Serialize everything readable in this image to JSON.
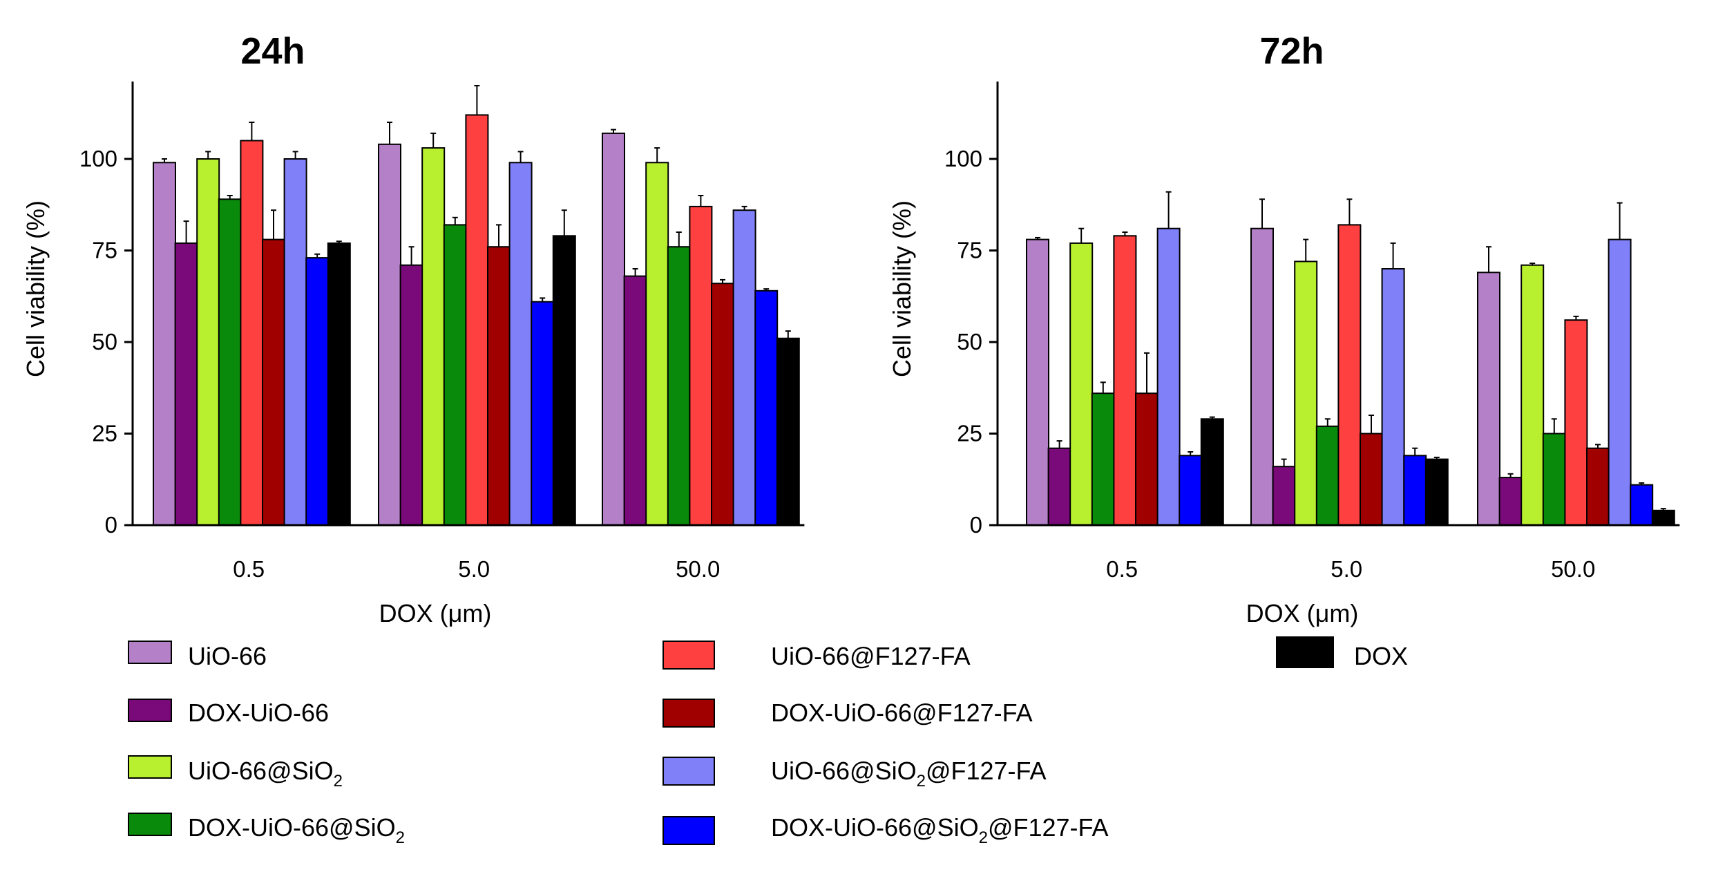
{
  "chart_data": [
    {
      "type": "bar",
      "title": "24h",
      "xlabel": "DOX (μm)",
      "ylabel": "Cell viability  (%)",
      "ylim": [
        0,
        120
      ],
      "yticks": [
        "0",
        "25",
        "50",
        "75",
        "100"
      ],
      "categories": [
        "0.5",
        "5.0",
        "50.0"
      ],
      "series": [
        {
          "name": "UiO-66",
          "color": "#b480c8",
          "values": [
            99,
            104,
            107
          ],
          "errors": [
            1,
            6,
            1
          ]
        },
        {
          "name": "DOX-UiO-66",
          "color": "#7a0a7a",
          "values": [
            77,
            71,
            68
          ],
          "errors": [
            6,
            5,
            2
          ]
        },
        {
          "name": "UiO-66@SiO2",
          "color": "#b8f030",
          "values": [
            100,
            103,
            99
          ],
          "errors": [
            2,
            4,
            4
          ]
        },
        {
          "name": "DOX-UiO-66@SiO2",
          "color": "#0a8a0a",
          "values": [
            89,
            82,
            76
          ],
          "errors": [
            1,
            2,
            4
          ]
        },
        {
          "name": "UiO-66@F127-FA",
          "color": "#ff4040",
          "values": [
            105,
            112,
            87
          ],
          "errors": [
            5,
            8,
            3
          ]
        },
        {
          "name": "DOX-UiO-66@F127-FA",
          "color": "#a00000",
          "values": [
            78,
            76,
            66
          ],
          "errors": [
            8,
            6,
            1
          ]
        },
        {
          "name": "UiO-66@SiO2@F127-FA",
          "color": "#8080f8",
          "values": [
            100,
            99,
            86
          ],
          "errors": [
            2,
            3,
            1
          ]
        },
        {
          "name": "DOX-UiO-66@SiO2@F127-FA",
          "color": "#0000ff",
          "values": [
            73,
            61,
            64
          ],
          "errors": [
            1,
            1,
            0.5
          ]
        },
        {
          "name": "DOX",
          "color": "#000000",
          "values": [
            77,
            79,
            51
          ],
          "errors": [
            0.5,
            7,
            2
          ]
        }
      ]
    },
    {
      "type": "bar",
      "title": "72h",
      "xlabel": "DOX (μm)",
      "ylabel": "Cell viability  (%)",
      "ylim": [
        0,
        120
      ],
      "yticks": [
        "0",
        "25",
        "50",
        "75",
        "100"
      ],
      "categories": [
        "0.5",
        "5.0",
        "50.0"
      ],
      "series": [
        {
          "name": "UiO-66",
          "color": "#b480c8",
          "values": [
            78,
            81,
            69
          ],
          "errors": [
            0.5,
            8,
            7
          ]
        },
        {
          "name": "DOX-UiO-66",
          "color": "#7a0a7a",
          "values": [
            21,
            16,
            13
          ],
          "errors": [
            2,
            2,
            1
          ]
        },
        {
          "name": "UiO-66@SiO2",
          "color": "#b8f030",
          "values": [
            77,
            72,
            71
          ],
          "errors": [
            4,
            6,
            0.5
          ]
        },
        {
          "name": "DOX-UiO-66@SiO2",
          "color": "#0a8a0a",
          "values": [
            36,
            27,
            25
          ],
          "errors": [
            3,
            2,
            4
          ]
        },
        {
          "name": "UiO-66@F127-FA",
          "color": "#ff4040",
          "values": [
            79,
            82,
            56
          ],
          "errors": [
            1,
            7,
            1
          ]
        },
        {
          "name": "DOX-UiO-66@F127-FA",
          "color": "#a00000",
          "values": [
            36,
            25,
            21
          ],
          "errors": [
            11,
            5,
            1
          ]
        },
        {
          "name": "UiO-66@SiO2@F127-FA",
          "color": "#8080f8",
          "values": [
            81,
            70,
            78
          ],
          "errors": [
            10,
            7,
            10
          ]
        },
        {
          "name": "DOX-UiO-66@SiO2@F127-FA",
          "color": "#0000ff",
          "values": [
            19,
            19,
            11
          ],
          "errors": [
            1,
            2,
            0.5
          ]
        },
        {
          "name": "DOX",
          "color": "#000000",
          "values": [
            29,
            18,
            4
          ],
          "errors": [
            0.5,
            0.5,
            0.5
          ]
        }
      ]
    }
  ],
  "legend": [
    {
      "label": "UiO-66",
      "sub": "",
      "tail": "",
      "color": "#b480c8"
    },
    {
      "label": "DOX-UiO-66",
      "sub": "",
      "tail": "",
      "color": "#7a0a7a"
    },
    {
      "label": "UiO-66@SiO",
      "sub": "2",
      "tail": "",
      "color": "#b8f030"
    },
    {
      "label": "DOX-UiO-66@SiO",
      "sub": "2",
      "tail": "",
      "color": "#0a8a0a"
    },
    {
      "label": "UiO-66@F127-FA",
      "sub": "",
      "tail": "",
      "color": "#ff4040"
    },
    {
      "label": "DOX-UiO-66@F127-FA",
      "sub": "",
      "tail": "",
      "color": "#a00000"
    },
    {
      "label": "UiO-66@SiO",
      "sub": "2",
      "tail": "@F127-FA",
      "color": "#8080f8"
    },
    {
      "label": "DOX-UiO-66@SiO",
      "sub": "2",
      "tail": "@F127-FA",
      "color": "#0000ff"
    },
    {
      "label": "DOX",
      "sub": "",
      "tail": "",
      "color": "#000000"
    }
  ]
}
